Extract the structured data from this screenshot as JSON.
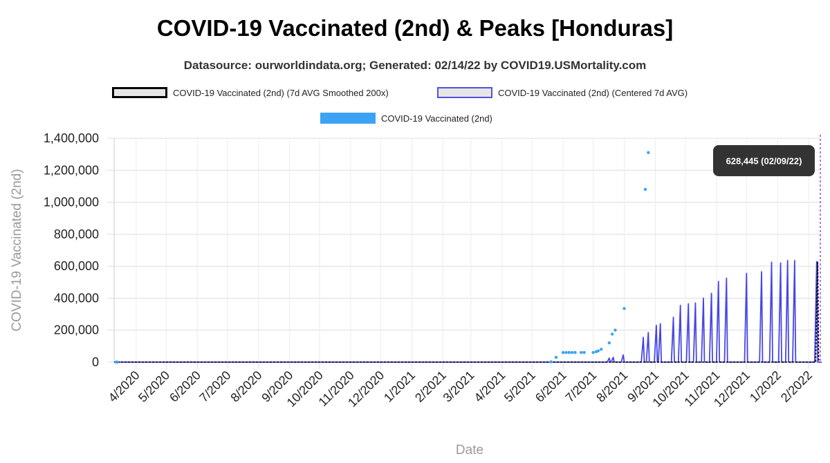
{
  "chart_data": {
    "type": "line",
    "title": "COVID-19 Vaccinated (2nd) & Peaks [Honduras]",
    "subtitle": "Datasource: ourworldindata.org; Generated: 02/14/22 by COVID19.USMortality.com",
    "xlabel": "Date",
    "ylabel": "COVID-19 Vaccinated (2nd)",
    "ylim": [
      0,
      1400000
    ],
    "xlim": [
      "2020-03-10",
      "2022-02-14"
    ],
    "grid": true,
    "legend": {
      "placement": "top",
      "entries": [
        "COVID-19 Vaccinated (2nd) (7d AVG Smoothed 200x)",
        "COVID-19 Vaccinated (2nd) (Centered 7d AVG)",
        "COVID-19 Vaccinated (2nd)"
      ]
    },
    "y_ticks": [
      {
        "value": 0,
        "label": "0"
      },
      {
        "value": 200000,
        "label": "200,000"
      },
      {
        "value": 400000,
        "label": "400,000"
      },
      {
        "value": 600000,
        "label": "600,000"
      },
      {
        "value": 800000,
        "label": "800,000"
      },
      {
        "value": 1000000,
        "label": "1,000,000"
      },
      {
        "value": 1200000,
        "label": "1,200,000"
      },
      {
        "value": 1400000,
        "label": "1,400,000"
      }
    ],
    "x_ticks": [
      {
        "date": "2020-04-01",
        "label": "4/2020"
      },
      {
        "date": "2020-05-01",
        "label": "5/2020"
      },
      {
        "date": "2020-06-01",
        "label": "6/2020"
      },
      {
        "date": "2020-07-01",
        "label": "7/2020"
      },
      {
        "date": "2020-08-01",
        "label": "8/2020"
      },
      {
        "date": "2020-09-01",
        "label": "9/2020"
      },
      {
        "date": "2020-10-01",
        "label": "10/2020"
      },
      {
        "date": "2020-11-01",
        "label": "11/2020"
      },
      {
        "date": "2020-12-01",
        "label": "12/2020"
      },
      {
        "date": "2021-01-01",
        "label": "1/2021"
      },
      {
        "date": "2021-02-01",
        "label": "2/2021"
      },
      {
        "date": "2021-03-01",
        "label": "3/2021"
      },
      {
        "date": "2021-04-01",
        "label": "4/2021"
      },
      {
        "date": "2021-05-01",
        "label": "5/2021"
      },
      {
        "date": "2021-06-01",
        "label": "6/2021"
      },
      {
        "date": "2021-07-01",
        "label": "7/2021"
      },
      {
        "date": "2021-08-01",
        "label": "8/2021"
      },
      {
        "date": "2021-09-01",
        "label": "9/2021"
      },
      {
        "date": "2021-10-01",
        "label": "10/2021"
      },
      {
        "date": "2021-11-01",
        "label": "11/2021"
      },
      {
        "date": "2021-12-01",
        "label": "12/2021"
      },
      {
        "date": "2022-01-01",
        "label": "1/2022"
      },
      {
        "date": "2022-02-01",
        "label": "2/2022"
      }
    ],
    "series": [
      {
        "name": "COVID-19 Vaccinated (2nd)",
        "style": "points",
        "color": "#3ca3f4",
        "points": [
          [
            "2020-03-12",
            0
          ],
          [
            "2020-03-13",
            0
          ],
          [
            "2021-05-20",
            2000
          ],
          [
            "2021-05-25",
            30000
          ],
          [
            "2021-06-01",
            60000
          ],
          [
            "2021-06-04",
            60000
          ],
          [
            "2021-06-07",
            60000
          ],
          [
            "2021-06-10",
            60000
          ],
          [
            "2021-06-13",
            60000
          ],
          [
            "2021-06-19",
            60000
          ],
          [
            "2021-06-22",
            60000
          ],
          [
            "2021-07-01",
            60000
          ],
          [
            "2021-07-04",
            65000
          ],
          [
            "2021-07-06",
            70000
          ],
          [
            "2021-07-09",
            80000
          ],
          [
            "2021-07-17",
            120000
          ],
          [
            "2021-07-20",
            175000
          ],
          [
            "2021-07-23",
            200000
          ],
          [
            "2021-08-01",
            335000
          ],
          [
            "2021-08-22",
            1080000
          ],
          [
            "2021-08-25",
            1310000
          ]
        ]
      },
      {
        "name": "COVID-19 Vaccinated (2nd) (Centered 7d AVG)",
        "style": "line",
        "color": "#4646e6",
        "peaks": [
          [
            "2021-07-17",
            25000
          ],
          [
            "2021-07-21",
            30000
          ],
          [
            "2021-07-31",
            45000
          ],
          [
            "2021-08-20",
            155000
          ],
          [
            "2021-08-25",
            185000
          ],
          [
            "2021-09-02",
            230000
          ],
          [
            "2021-09-06",
            240000
          ],
          [
            "2021-09-19",
            280000
          ],
          [
            "2021-09-26",
            355000
          ],
          [
            "2021-10-04",
            365000
          ],
          [
            "2021-10-11",
            370000
          ],
          [
            "2021-10-19",
            400000
          ],
          [
            "2021-10-27",
            430000
          ],
          [
            "2021-11-03",
            505000
          ],
          [
            "2021-11-11",
            525000
          ],
          [
            "2021-12-01",
            555000
          ],
          [
            "2021-12-16",
            565000
          ],
          [
            "2021-12-26",
            625000
          ],
          [
            "2022-01-04",
            620000
          ],
          [
            "2022-01-11",
            635000
          ],
          [
            "2022-01-18",
            635000
          ],
          [
            "2022-02-09",
            628445
          ]
        ]
      },
      {
        "name": "COVID-19 Vaccinated (2nd) (7d AVG Smoothed 200x)",
        "style": "line",
        "color": "#000000",
        "points": [
          [
            "2020-03-10",
            0
          ],
          [
            "2022-02-08",
            0
          ],
          [
            "2022-02-10",
            628445
          ],
          [
            "2022-02-11",
            0
          ]
        ]
      }
    ],
    "annotation": {
      "date": "2022-02-14",
      "label": "628,445 (02/09/22)"
    }
  }
}
